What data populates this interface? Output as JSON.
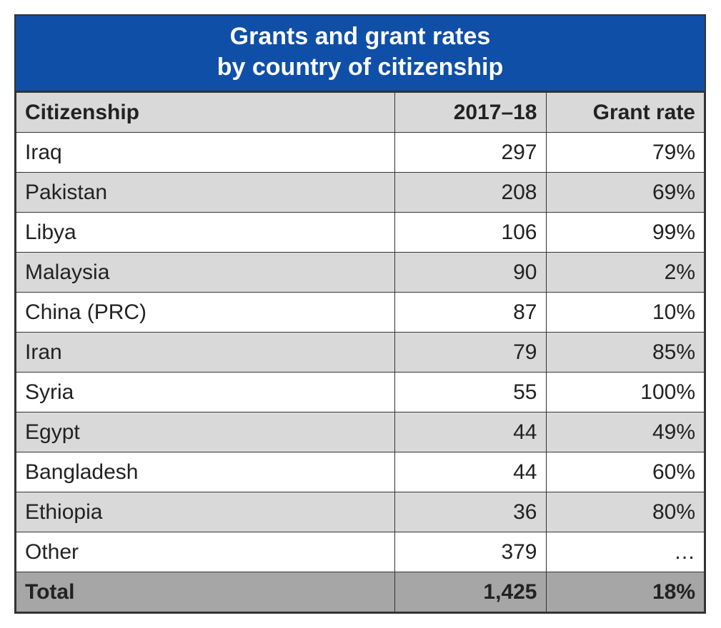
{
  "table": {
    "type": "table",
    "title_line1": "Grants and grant rates",
    "title_line2": "by country of citizenship",
    "title_bg": "#0f4fa8",
    "title_color": "#ffffff",
    "title_fontsize": 34,
    "border_color": "#333333",
    "header_bg": "#d9d9d9",
    "row_odd_bg": "#ffffff",
    "row_even_bg": "#d9d9d9",
    "total_bg": "#a6a6a6",
    "cell_fontsize": 30,
    "columns": [
      {
        "label": "Citizenship",
        "align": "left",
        "width_pct": 55
      },
      {
        "label": "2017–18",
        "align": "right",
        "width_pct": 22
      },
      {
        "label": "Grant rate",
        "align": "right",
        "width_pct": 23
      }
    ],
    "rows": [
      {
        "citizenship": "Iraq",
        "count": "297",
        "rate": "79%"
      },
      {
        "citizenship": "Pakistan",
        "count": "208",
        "rate": "69%"
      },
      {
        "citizenship": "Libya",
        "count": "106",
        "rate": "99%"
      },
      {
        "citizenship": "Malaysia",
        "count": "90",
        "rate": "2%"
      },
      {
        "citizenship": "China (PRC)",
        "count": "87",
        "rate": "10%"
      },
      {
        "citizenship": "Iran",
        "count": "79",
        "rate": "85%"
      },
      {
        "citizenship": "Syria",
        "count": "55",
        "rate": "100%"
      },
      {
        "citizenship": "Egypt",
        "count": "44",
        "rate": "49%"
      },
      {
        "citizenship": "Bangladesh",
        "count": "44",
        "rate": "60%"
      },
      {
        "citizenship": "Ethiopia",
        "count": "36",
        "rate": "80%"
      },
      {
        "citizenship": "Other",
        "count": "379",
        "rate": "…"
      }
    ],
    "total": {
      "citizenship": "Total",
      "count": "1,425",
      "rate": "18%"
    }
  }
}
